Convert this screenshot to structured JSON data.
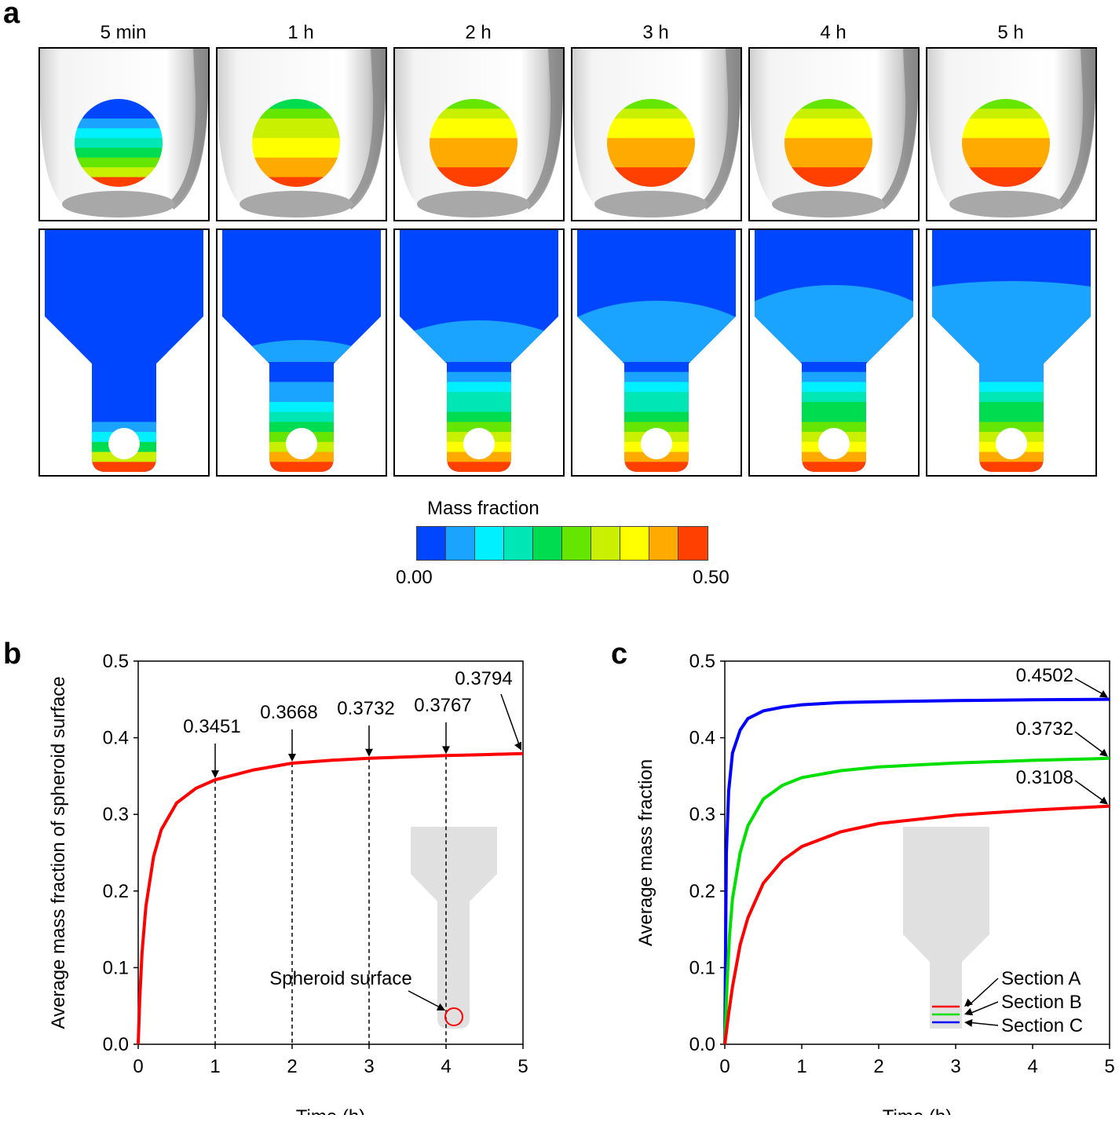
{
  "panel_a": {
    "letter": "a",
    "time_labels": [
      "5 min",
      "1 h",
      "2 h",
      "3 h",
      "4 h",
      "5 h"
    ],
    "colorbar": {
      "title": "Mass fraction",
      "min_label": "0.00",
      "max_label": "0.50",
      "colors": [
        "#0046ff",
        "#1aa3ff",
        "#00f0ff",
        "#00e6b4",
        "#00dc50",
        "#64e600",
        "#c8f000",
        "#ffff00",
        "#ffaa00",
        "#ff4000"
      ]
    }
  },
  "chart_data": [
    {
      "panel": "b",
      "type": "line",
      "xlabel": "Time (h)",
      "ylabel": "Average mass fraction of spheroid surface",
      "xlim": [
        0,
        5
      ],
      "ylim": [
        0,
        0.5
      ],
      "xticks": [
        "0",
        "1",
        "2",
        "3",
        "4",
        "5"
      ],
      "yticks": [
        "0.0",
        "0.1",
        "0.2",
        "0.3",
        "0.4",
        "0.5"
      ],
      "series": [
        {
          "color": "#ff0000",
          "x": [
            0,
            0.02,
            0.05,
            0.1,
            0.2,
            0.3,
            0.5,
            0.75,
            1,
            1.5,
            2,
            2.5,
            3,
            3.5,
            4,
            4.5,
            5
          ],
          "y": [
            0,
            0.06,
            0.12,
            0.18,
            0.245,
            0.28,
            0.315,
            0.334,
            0.3451,
            0.358,
            0.3668,
            0.3705,
            0.3732,
            0.375,
            0.3767,
            0.378,
            0.3794
          ]
        }
      ],
      "annotations": [
        {
          "text": "0.3451",
          "x": 1,
          "y": 0.3451
        },
        {
          "text": "0.3668",
          "x": 2,
          "y": 0.3668
        },
        {
          "text": "0.3732",
          "x": 3,
          "y": 0.3732
        },
        {
          "text": "0.3767",
          "x": 4,
          "y": 0.3767
        },
        {
          "text": "0.3794",
          "x": 5,
          "y": 0.3794
        }
      ],
      "inset_label": "Spheroid surface"
    },
    {
      "panel": "c",
      "type": "line",
      "xlabel": "Time (h)",
      "ylabel": "Average mass fraction",
      "xlim": [
        0,
        5
      ],
      "ylim": [
        0,
        0.5
      ],
      "xticks": [
        "0",
        "1",
        "2",
        "3",
        "4",
        "5"
      ],
      "yticks": [
        "0.0",
        "0.1",
        "0.2",
        "0.3",
        "0.4",
        "0.5"
      ],
      "series": [
        {
          "name": "Section C",
          "color": "#0000ff",
          "x": [
            0,
            0.02,
            0.05,
            0.1,
            0.2,
            0.3,
            0.5,
            0.75,
            1,
            1.5,
            2,
            3,
            4,
            5
          ],
          "y": [
            0,
            0.25,
            0.33,
            0.38,
            0.41,
            0.425,
            0.435,
            0.44,
            0.443,
            0.446,
            0.447,
            0.4485,
            0.4495,
            0.4502
          ]
        },
        {
          "name": "Section B",
          "color": "#00e000",
          "x": [
            0,
            0.03,
            0.06,
            0.1,
            0.2,
            0.3,
            0.5,
            0.75,
            1,
            1.5,
            2,
            3,
            4,
            5
          ],
          "y": [
            0,
            0.08,
            0.14,
            0.19,
            0.25,
            0.285,
            0.32,
            0.338,
            0.348,
            0.357,
            0.362,
            0.367,
            0.3705,
            0.3732
          ]
        },
        {
          "name": "Section A",
          "color": "#ff0000",
          "x": [
            0,
            0.05,
            0.1,
            0.2,
            0.3,
            0.5,
            0.75,
            1,
            1.5,
            2,
            3,
            4,
            5
          ],
          "y": [
            0,
            0.04,
            0.075,
            0.13,
            0.165,
            0.21,
            0.24,
            0.258,
            0.277,
            0.288,
            0.299,
            0.3055,
            0.3108
          ]
        }
      ],
      "annotations": [
        {
          "text": "0.4502",
          "x": 5,
          "y": 0.4502
        },
        {
          "text": "0.3732",
          "x": 5,
          "y": 0.3732
        },
        {
          "text": "0.3108",
          "x": 5,
          "y": 0.3108
        }
      ]
    }
  ],
  "panel_b_letter": "b",
  "panel_c_letter": "c"
}
